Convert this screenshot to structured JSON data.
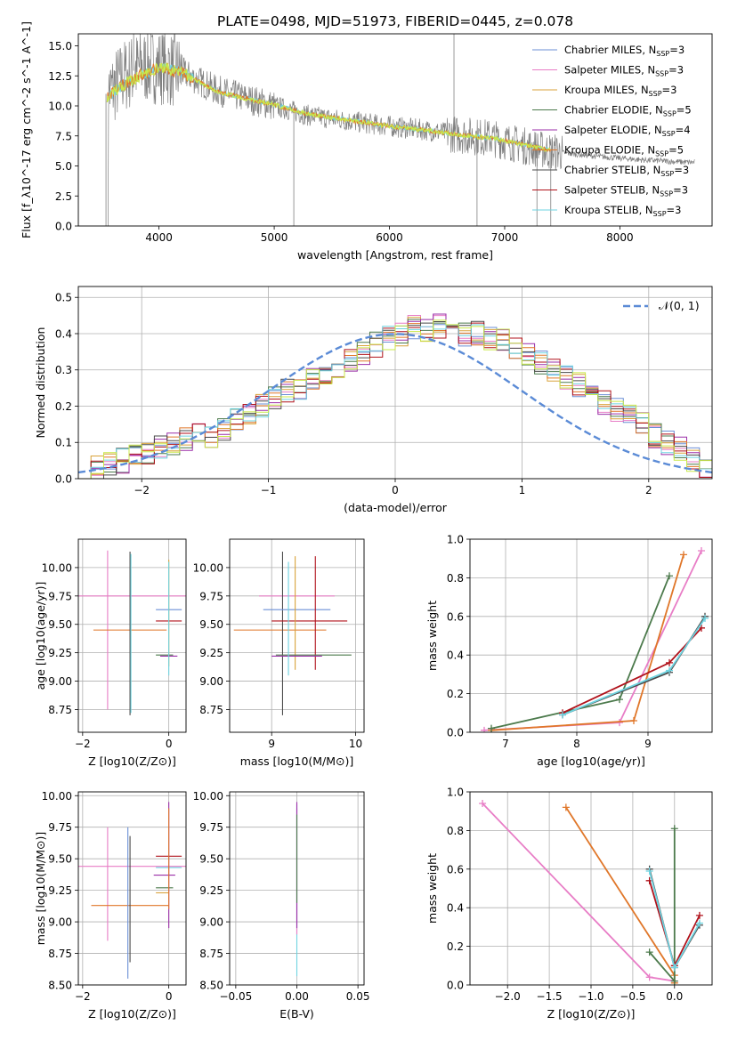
{
  "figure": {
    "title": "PLATE=0498, MJD=51973, FIBERID=0445, z=0.078"
  },
  "colors": {
    "Chabrier MILES": "#6b8fd6",
    "Salpeter MILES": "#e87dc6",
    "Kroupa MILES": "#d9a23a",
    "Chabrier ELODIE": "#4c7a4c",
    "Salpeter ELODIE": "#9b2fa8",
    "Kroupa ELODIE": "#e0772a",
    "Chabrier STELIB": "#4a4a4a",
    "Salpeter STELIB": "#b0121b",
    "Kroupa STELIB": "#6ed3e0",
    "data": "#808080",
    "lime": "#c9e84a",
    "normal": "#5b8bd6"
  },
  "chart_data": [
    {
      "id": "spectrum",
      "type": "line",
      "title": "PLATE=0498, MJD=51973, FIBERID=0445, z=0.078",
      "xlabel": "wavelength [Angstrom, rest frame]",
      "ylabel": "Flux [f_λ10^-17 erg cm^-2 s^-1 A^-1]",
      "xlim": [
        3300,
        8800
      ],
      "ylim": [
        0,
        16
      ],
      "xticks": [
        "4000",
        "5000",
        "6000",
        "7000",
        "8000"
      ],
      "yticks": [
        "0.0",
        "2.5",
        "5.0",
        "7.5",
        "10.0",
        "12.5",
        "15.0"
      ],
      "legend_position": "top-right",
      "legend": [
        {
          "model": "Chabrier MILES",
          "n": "3"
        },
        {
          "model": "Salpeter MILES",
          "n": "3"
        },
        {
          "model": "Kroupa MILES",
          "n": "3"
        },
        {
          "model": "Chabrier ELODIE",
          "n": "5"
        },
        {
          "model": "Salpeter ELODIE",
          "n": "4"
        },
        {
          "model": "Kroupa ELODIE",
          "n": "5"
        },
        {
          "model": "Chabrier STELIB",
          "n": "3"
        },
        {
          "model": "Salpeter STELIB",
          "n": "3"
        },
        {
          "model": "Kroupa STELIB",
          "n": "3"
        }
      ],
      "legend_prefix": "N",
      "legend_subscript": "SSP",
      "data_continuum": [
        [
          3550,
          11.0
        ],
        [
          3700,
          12.5
        ],
        [
          3850,
          13.3
        ],
        [
          4000,
          13.3
        ],
        [
          4200,
          12.8
        ],
        [
          4500,
          11.3
        ],
        [
          4800,
          10.5
        ],
        [
          5000,
          10.0
        ],
        [
          5300,
          9.2
        ],
        [
          5600,
          8.8
        ],
        [
          6000,
          8.3
        ],
        [
          6300,
          8.0
        ],
        [
          6600,
          7.6
        ],
        [
          6900,
          7.3
        ],
        [
          7200,
          6.6
        ],
        [
          7400,
          6.2
        ],
        [
          7800,
          5.8
        ],
        [
          8200,
          5.5
        ],
        [
          8600,
          5.3
        ]
      ],
      "model_continuum": [
        [
          3550,
          10.8
        ],
        [
          3700,
          11.8
        ],
        [
          3850,
          12.6
        ],
        [
          4000,
          13.2
        ],
        [
          4200,
          12.8
        ],
        [
          4500,
          11.2
        ],
        [
          4800,
          10.5
        ],
        [
          5000,
          10.1
        ],
        [
          5300,
          9.3
        ],
        [
          5600,
          8.9
        ],
        [
          6000,
          8.3
        ],
        [
          6300,
          8.0
        ],
        [
          6600,
          7.6
        ],
        [
          6900,
          7.3
        ],
        [
          7200,
          6.7
        ],
        [
          7400,
          6.3
        ]
      ]
    },
    {
      "id": "residuals",
      "type": "area",
      "xlabel": "(data-model)/error",
      "ylabel": "Normed distribution",
      "xlim": [
        -2.5,
        2.5
      ],
      "ylim": [
        0,
        0.53
      ],
      "xticks": [
        "−2",
        "−1",
        "0",
        "1",
        "2"
      ],
      "yticks": [
        "0.0",
        "0.1",
        "0.2",
        "0.3",
        "0.4",
        "0.5"
      ],
      "legend_position": "top-right",
      "legend_label": "𝒩(0, 1)",
      "bin_edges_start": -2.5,
      "bin_width": 0.1,
      "hist_heights": [
        0.03,
        0.03,
        0.04,
        0.05,
        0.06,
        0.07,
        0.09,
        0.1,
        0.11,
        0.12,
        0.12,
        0.14,
        0.16,
        0.18,
        0.2,
        0.22,
        0.24,
        0.25,
        0.27,
        0.29,
        0.31,
        0.33,
        0.35,
        0.37,
        0.39,
        0.4,
        0.42,
        0.41,
        0.42,
        0.4,
        0.4,
        0.4,
        0.39,
        0.38,
        0.36,
        0.34,
        0.32,
        0.3,
        0.28,
        0.26,
        0.24,
        0.21,
        0.19,
        0.17,
        0.15,
        0.12,
        0.1,
        0.08,
        0.05,
        0.03
      ]
    },
    {
      "id": "age-vs-z",
      "type": "scatter",
      "xlabel": "Z [log10(Z/Z⊙)]",
      "ylabel": "age [log10(age/yr)]",
      "xlim": [
        -2.1,
        0.4
      ],
      "ylim": [
        8.55,
        10.25
      ],
      "xticks": [
        "−2",
        "0"
      ],
      "yticks": [
        "8.75",
        "9.00",
        "9.25",
        "9.50",
        "9.75",
        "10.00"
      ],
      "errorbars": [
        {
          "series": "Salpeter MILES",
          "x": -1.0,
          "xerr": 2.0,
          "y": 9.75,
          "yerr": 0.0
        },
        {
          "series": "Salpeter MILES",
          "x": -1.42,
          "xerr": 0.0,
          "y": 9.45,
          "yerr": 0.7
        },
        {
          "series": "Kroupa ELODIE",
          "x": -0.9,
          "xerr": 0.85,
          "y": 9.45,
          "yerr": 0.0
        },
        {
          "series": "Chabrier STELIB",
          "x": -0.9,
          "xerr": 0.0,
          "y": 9.42,
          "yerr": 0.72
        },
        {
          "series": "Kroupa STELIB",
          "x": -0.88,
          "xerr": 0.0,
          "y": 9.42,
          "yerr": 0.7
        },
        {
          "series": "Salpeter STELIB",
          "x": 0.0,
          "xerr": 0.3,
          "y": 9.53,
          "yerr": 0.0
        },
        {
          "series": "Chabrier MILES",
          "x": 0.0,
          "xerr": 0.3,
          "y": 9.63,
          "yerr": 0.0
        },
        {
          "series": "Kroupa MILES",
          "x": 0.0,
          "xerr": 0.0,
          "y": 9.6,
          "yerr": 0.47
        },
        {
          "series": "Chabrier ELODIE",
          "x": -0.1,
          "xerr": 0.2,
          "y": 9.23,
          "yerr": 0.0
        },
        {
          "series": "Salpeter ELODIE",
          "x": 0.0,
          "xerr": 0.2,
          "y": 9.22,
          "yerr": 0.0
        },
        {
          "series": "Kroupa STELIB",
          "x": 0.0,
          "xerr": 0.0,
          "y": 9.55,
          "yerr": 0.5
        }
      ]
    },
    {
      "id": "age-vs-mass",
      "type": "scatter",
      "xlabel": "mass [log10(M/M⊙)]",
      "ylabel": "",
      "xlim": [
        8.5,
        10.1
      ],
      "ylim": [
        8.55,
        10.25
      ],
      "xticks": [
        "9",
        "10"
      ],
      "yticks": [
        "8.75",
        "9.00",
        "9.25",
        "9.50",
        "9.75",
        "10.00"
      ],
      "errorbars": [
        {
          "series": "Salpeter MILES",
          "x": 9.3,
          "xerr": 0.45,
          "y": 9.75,
          "yerr": 0.0
        },
        {
          "series": "Kroupa ELODIE",
          "x": 9.1,
          "xerr": 0.55,
          "y": 9.45,
          "yerr": 0.0
        },
        {
          "series": "Chabrier STELIB",
          "x": 9.13,
          "xerr": 0.0,
          "y": 9.42,
          "yerr": 0.72
        },
        {
          "series": "Chabrier MILES",
          "x": 9.3,
          "xerr": 0.4,
          "y": 9.63,
          "yerr": 0.0
        },
        {
          "series": "Salpeter STELIB",
          "x": 9.45,
          "xerr": 0.45,
          "y": 9.53,
          "yerr": 0.0
        },
        {
          "series": "Salpeter STELIB",
          "x": 9.52,
          "xerr": 0.0,
          "y": 9.6,
          "yerr": 0.5
        },
        {
          "series": "Kroupa MILES",
          "x": 9.28,
          "xerr": 0.0,
          "y": 9.6,
          "yerr": 0.5
        },
        {
          "series": "Chabrier ELODIE",
          "x": 9.5,
          "xerr": 0.45,
          "y": 9.23,
          "yerr": 0.0
        },
        {
          "series": "Salpeter ELODIE",
          "x": 9.3,
          "xerr": 0.3,
          "y": 9.22,
          "yerr": 0.0
        },
        {
          "series": "Kroupa STELIB",
          "x": 9.2,
          "xerr": 0.0,
          "y": 9.55,
          "yerr": 0.5
        }
      ]
    },
    {
      "id": "massweight-vs-age",
      "type": "line",
      "xlabel": "age [log10(age/yr)]",
      "ylabel": "mass weight",
      "xlim": [
        6.5,
        9.9
      ],
      "ylim": [
        0.0,
        1.0
      ],
      "xticks": [
        "7",
        "8",
        "9"
      ],
      "yticks": [
        "0.0",
        "0.2",
        "0.4",
        "0.6",
        "0.8",
        "1.0"
      ],
      "series": [
        {
          "name": "Salpeter MILES",
          "x": [
            6.7,
            8.6,
            9.75
          ],
          "y": [
            0.01,
            0.05,
            0.94
          ]
        },
        {
          "name": "Kroupa ELODIE",
          "x": [
            6.8,
            8.8,
            9.5
          ],
          "y": [
            0.01,
            0.06,
            0.92
          ]
        },
        {
          "name": "Chabrier ELODIE",
          "x": [
            6.8,
            8.6,
            9.3
          ],
          "y": [
            0.02,
            0.17,
            0.81
          ]
        },
        {
          "name": "Chabrier STELIB",
          "x": [
            7.8,
            9.3,
            9.8
          ],
          "y": [
            0.09,
            0.31,
            0.6
          ]
        },
        {
          "name": "Salpeter STELIB",
          "x": [
            7.8,
            9.3,
            9.75
          ],
          "y": [
            0.1,
            0.36,
            0.54
          ]
        },
        {
          "name": "Kroupa STELIB",
          "x": [
            7.8,
            9.3,
            9.8
          ],
          "y": [
            0.09,
            0.32,
            0.59
          ]
        }
      ]
    },
    {
      "id": "mass-vs-z",
      "type": "scatter",
      "xlabel": "Z [log10(Z/Z⊙)]",
      "ylabel": "mass [log10(M/M⊙)]",
      "xlim": [
        -2.1,
        0.4
      ],
      "ylim": [
        8.5,
        10.03
      ],
      "xticks": [
        "−2",
        "0"
      ],
      "yticks": [
        "8.50",
        "8.75",
        "9.00",
        "9.25",
        "9.50",
        "9.75",
        "10.00"
      ],
      "errorbars": [
        {
          "series": "Salpeter MILES",
          "x": -1.0,
          "xerr": 1.8,
          "y": 9.44,
          "yerr": 0.0
        },
        {
          "series": "Salpeter MILES",
          "x": -1.42,
          "xerr": 0.0,
          "y": 9.3,
          "yerr": 0.45
        },
        {
          "series": "Kroupa ELODIE",
          "x": -0.9,
          "xerr": 0.9,
          "y": 9.13,
          "yerr": 0.0
        },
        {
          "series": "Chabrier STELIB",
          "x": -0.9,
          "xerr": 0.0,
          "y": 9.18,
          "yerr": 0.5
        },
        {
          "series": "Chabrier MILES",
          "x": -0.95,
          "xerr": 0.0,
          "y": 9.15,
          "yerr": 0.6
        },
        {
          "series": "Salpeter STELIB",
          "x": 0.0,
          "xerr": 0.3,
          "y": 9.52,
          "yerr": 0.0
        },
        {
          "series": "Kroupa STELIB",
          "x": 0.0,
          "xerr": 0.3,
          "y": 9.43,
          "yerr": 0.0
        },
        {
          "series": "Salpeter ELODIE",
          "x": -0.1,
          "xerr": 0.25,
          "y": 9.37,
          "yerr": 0.0
        },
        {
          "series": "Chabrier ELODIE",
          "x": -0.1,
          "xerr": 0.2,
          "y": 9.27,
          "yerr": 0.0
        },
        {
          "series": "Kroupa MILES",
          "x": -0.15,
          "xerr": 0.15,
          "y": 9.23,
          "yerr": 0.0
        },
        {
          "series": "Salpeter ELODIE",
          "x": 0.0,
          "xerr": 0.0,
          "y": 9.45,
          "yerr": 0.5
        },
        {
          "series": "Kroupa ELODIE",
          "x": 0.0,
          "xerr": 0.0,
          "y": 9.5,
          "yerr": 0.4
        }
      ]
    },
    {
      "id": "mass-vs-ebv",
      "type": "scatter",
      "xlabel": "E(B-V)",
      "ylabel": "",
      "xlim": [
        -0.055,
        0.055
      ],
      "ylim": [
        8.5,
        10.03
      ],
      "xticks": [
        "−0.05",
        "0.00",
        "0.05"
      ],
      "yticks": [
        "8.50",
        "8.75",
        "9.00",
        "9.25",
        "9.50",
        "9.75",
        "10.00"
      ],
      "errorbars": [
        {
          "series": "Kroupa STELIB",
          "x": 0.0,
          "xerr": 0.0,
          "y": 9.25,
          "yerr": 0.68
        },
        {
          "series": "Salpeter MILES",
          "x": 0.0,
          "xerr": 0.0,
          "y": 9.4,
          "yerr": 0.5
        },
        {
          "series": "Salpeter ELODIE",
          "x": 0.0,
          "xerr": 0.0,
          "y": 9.45,
          "yerr": 0.5
        },
        {
          "series": "Chabrier ELODIE",
          "x": 0.0,
          "xerr": 0.0,
          "y": 9.5,
          "yerr": 0.35
        }
      ]
    },
    {
      "id": "massweight-vs-z",
      "type": "line",
      "xlabel": "Z [log10(Z/Z⊙)]",
      "ylabel": "mass weight",
      "xlim": [
        -2.45,
        0.45
      ],
      "ylim": [
        0.0,
        1.0
      ],
      "xticks": [
        "−2.0",
        "−1.5",
        "−1.0",
        "−0.5",
        "0.0"
      ],
      "yticks": [
        "0.0",
        "0.2",
        "0.4",
        "0.6",
        "0.8",
        "1.0"
      ],
      "series": [
        {
          "name": "Salpeter MILES",
          "x": [
            -2.3,
            -0.3,
            0.0
          ],
          "y": [
            0.94,
            0.04,
            0.02
          ]
        },
        {
          "name": "Kroupa ELODIE",
          "x": [
            -1.3,
            0.0,
            0.0
          ],
          "y": [
            0.92,
            0.05,
            0.01
          ]
        },
        {
          "name": "Chabrier ELODIE",
          "x": [
            -0.3,
            0.0,
            0.0
          ],
          "y": [
            0.17,
            0.02,
            0.81
          ]
        },
        {
          "name": "Chabrier STELIB",
          "x": [
            -0.3,
            0.0,
            0.3
          ],
          "y": [
            0.6,
            0.09,
            0.31
          ]
        },
        {
          "name": "Salpeter STELIB",
          "x": [
            -0.3,
            0.0,
            0.3
          ],
          "y": [
            0.54,
            0.1,
            0.36
          ]
        },
        {
          "name": "Kroupa STELIB",
          "x": [
            -0.3,
            0.0,
            0.3
          ],
          "y": [
            0.59,
            0.09,
            0.32
          ]
        }
      ]
    }
  ]
}
